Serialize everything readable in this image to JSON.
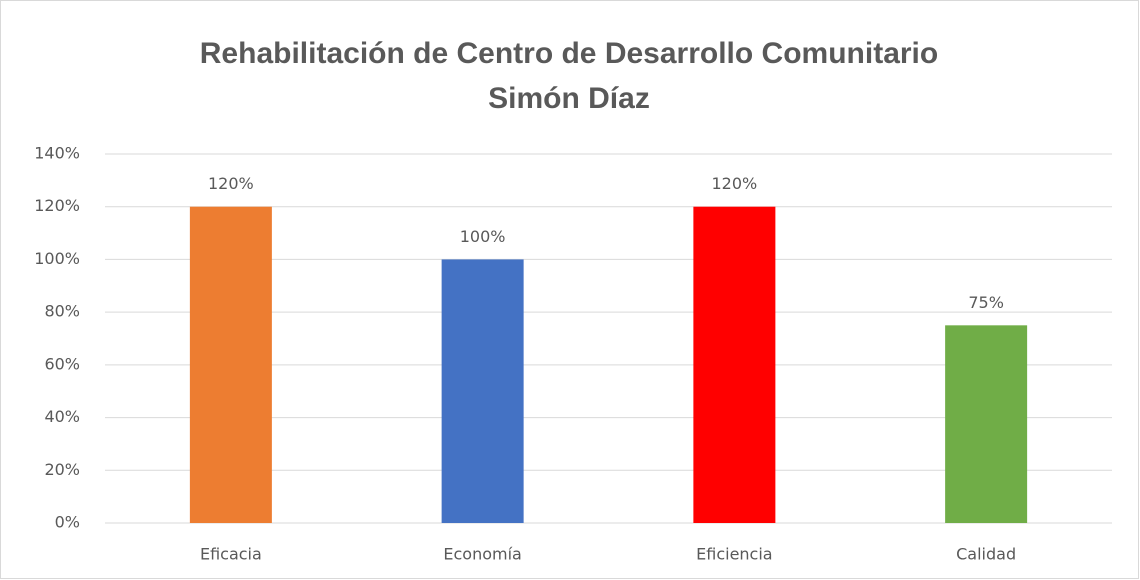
{
  "chart_data": {
    "type": "bar",
    "title": [
      "Rehabilitación de Centro de Desarrollo Comunitario",
      "Simón Díaz"
    ],
    "categories": [
      "Eficacia",
      "Economía",
      "Eficiencia",
      "Calidad"
    ],
    "values": [
      120,
      100,
      120,
      75
    ],
    "value_labels": [
      "120%",
      "100%",
      "120%",
      "75%"
    ],
    "colors": [
      "#ed7d31",
      "#4472c4",
      "#ff0000",
      "#70ad47"
    ],
    "ylim": [
      0,
      140
    ],
    "yticks": [
      {
        "value": 0,
        "label": "0%"
      },
      {
        "value": 20,
        "label": "20%"
      },
      {
        "value": 40,
        "label": "40%"
      },
      {
        "value": 60,
        "label": "60%"
      },
      {
        "value": 80,
        "label": "80%"
      },
      {
        "value": 100,
        "label": "100%"
      },
      {
        "value": 120,
        "label": "120%"
      },
      {
        "value": 140,
        "label": "140%"
      }
    ],
    "grid": true
  }
}
